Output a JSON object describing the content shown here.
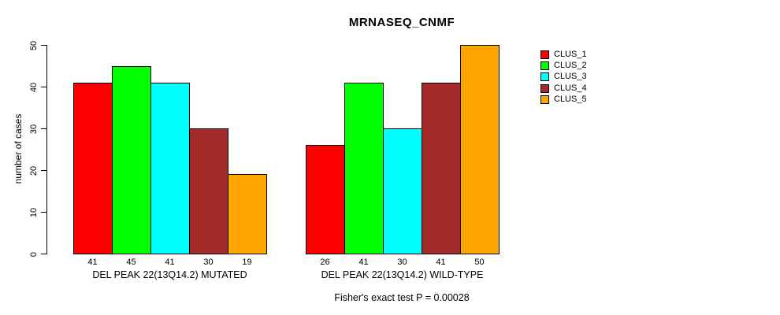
{
  "figure": {
    "title": "MRNASEQ_CNMF",
    "footnote": "Fisher's exact test P = 0.00028"
  },
  "chart_data": {
    "type": "bar",
    "title": "MRNASEQ_CNMF",
    "xlabel": "",
    "ylabel": "number of cases",
    "ylim": [
      0,
      50
    ],
    "yticks": [
      0,
      10,
      20,
      30,
      40,
      50
    ],
    "grid": false,
    "legend_position": "right",
    "bar_value_labels_shown": true,
    "categories": [
      "DEL PEAK 22(13Q14.2) MUTATED",
      "DEL PEAK 22(13Q14.2) WILD-TYPE"
    ],
    "series": [
      {
        "name": "CLUS_1",
        "color": "#ff0000",
        "values": [
          41,
          26
        ]
      },
      {
        "name": "CLUS_2",
        "color": "#00ff00",
        "values": [
          45,
          41
        ]
      },
      {
        "name": "CLUS_3",
        "color": "#00ffff",
        "values": [
          41,
          30
        ]
      },
      {
        "name": "CLUS_4",
        "color": "#a52a2a",
        "values": [
          30,
          41
        ]
      },
      {
        "name": "CLUS_5",
        "color": "#ffa500",
        "values": [
          19,
          50
        ]
      }
    ],
    "annotation": "Fisher's exact test P = 0.00028"
  }
}
